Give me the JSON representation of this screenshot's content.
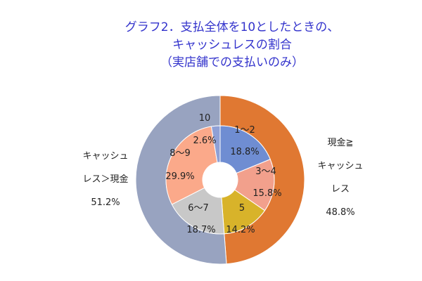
{
  "title": {
    "line1": "グラフ2．支払全体を10としたときの、",
    "line2": "キャッシュレスの割合",
    "line3": "（実店舗での支払いのみ）"
  },
  "outer_labels": {
    "left": {
      "line1": "キャッシュ",
      "line2": "レス＞現金",
      "line3": "51.2%"
    },
    "right": {
      "line1": "現金≧",
      "line2": "キャッシュ",
      "line3": "レス",
      "line4": "48.8%"
    }
  },
  "chart_data": {
    "type": "pie",
    "subtype": "doughnut-nested",
    "title": "グラフ2．支払全体を10としたときの、キャッシュレスの割合（実店舗での支払いのみ）",
    "outer_ring": [
      {
        "label": "現金≧キャッシュレス",
        "value": 48.8,
        "color": "#E07832"
      },
      {
        "label": "キャッシュレス＞現金",
        "value": 51.2,
        "color": "#98A3C0"
      }
    ],
    "inner_ring": [
      {
        "label": "1～2",
        "value": 18.8,
        "value_text": "18.8%",
        "color": "#6F8DD2"
      },
      {
        "label": "3～4",
        "value": 15.8,
        "value_text": "15.8%",
        "color": "#F2A08C"
      },
      {
        "label": "5",
        "value": 14.2,
        "value_text": "14.2%",
        "color": "#D8B32A"
      },
      {
        "label": "6～7",
        "value": 18.7,
        "value_text": "18.7%",
        "color": "#C8C8C8"
      },
      {
        "label": "8～9",
        "value": 29.9,
        "value_text": "29.9%",
        "color": "#FBA98A"
      },
      {
        "label": "10",
        "value": 2.6,
        "value_text": "2.6%",
        "color": "#8FA0D6"
      }
    ]
  }
}
